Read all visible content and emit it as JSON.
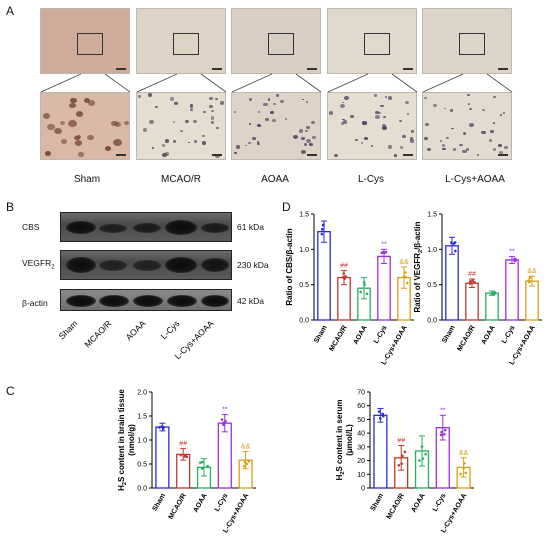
{
  "panelA": {
    "letter": "A",
    "groups": [
      "Sham",
      "MCAO/R",
      "AOAA",
      "L-Cys",
      "L-Cys+AOAA"
    ]
  },
  "panelB": {
    "letter": "B",
    "rows": [
      {
        "protein": "CBS",
        "kda": "61 kDa"
      },
      {
        "protein": "VEGFR",
        "sub": "2",
        "kda": "230 kDa"
      },
      {
        "protein": "β-actin",
        "kda": "42 kDa"
      }
    ],
    "lanes": [
      "Sham",
      "MCAO/R",
      "AOAA",
      "L-Cys",
      "L-Cys+AOAA"
    ]
  },
  "panelC_letter": "C",
  "panelD_letter": "D",
  "colors": {
    "sham": "#2b2bd6",
    "mcao": "#c0392b",
    "aoaa": "#27ae60",
    "lcys": "#9b30d9",
    "lcysaoaa": "#d4a017"
  },
  "chart_data": [
    {
      "id": "cbs",
      "type": "bar",
      "ylabel": "Ratio of CBS/β-actin",
      "categories": [
        "Sham",
        "MCAO/R",
        "AOAA",
        "L-Cys",
        "L-Cys+AOAA"
      ],
      "values": [
        1.25,
        0.6,
        0.45,
        0.9,
        0.6
      ],
      "errors": [
        0.15,
        0.1,
        0.15,
        0.1,
        0.15
      ],
      "ylim": [
        0,
        1.5
      ],
      "yticks": [
        "0.0",
        "0.5",
        "1.0",
        "1.5"
      ],
      "annotations": [
        "",
        "##",
        "",
        "**",
        "&&"
      ]
    },
    {
      "id": "vegfr",
      "type": "bar",
      "ylabel_main": "Ratio of VEGFR",
      "ylabel_sub": "2",
      "ylabel_tail": "/β-actin",
      "categories": [
        "Sham",
        "MCAO/R",
        "AOAA",
        "L-Cys",
        "L-Cys+AOAA"
      ],
      "values": [
        1.05,
        0.52,
        0.38,
        0.85,
        0.55
      ],
      "errors": [
        0.12,
        0.06,
        0.03,
        0.05,
        0.07
      ],
      "ylim": [
        0,
        1.5
      ],
      "yticks": [
        "0.0",
        "0.5",
        "1.0",
        "1.5"
      ],
      "annotations": [
        "",
        "##",
        "",
        "**",
        "&&"
      ]
    },
    {
      "id": "h2s-brain",
      "type": "bar",
      "ylabel_main": "H",
      "ylabel_sub": "2",
      "ylabel_tail": "S content in brain tissue",
      "ylabel_line2": "(nmol/g)",
      "categories": [
        "Sham",
        "MCAO/R",
        "AOAA",
        "L-Cys",
        "L-Cys+AOAA"
      ],
      "values": [
        1.27,
        0.7,
        0.43,
        1.35,
        0.58
      ],
      "errors": [
        0.08,
        0.12,
        0.18,
        0.18,
        0.18
      ],
      "ylim": [
        0,
        2.0
      ],
      "yticks": [
        "0.0",
        "0.5",
        "1.0",
        "1.5",
        "2.0"
      ],
      "annotations": [
        "",
        "##",
        "",
        "**",
        "&&"
      ]
    },
    {
      "id": "h2s-serum",
      "type": "bar",
      "ylabel_main": "H",
      "ylabel_sub": "2",
      "ylabel_tail": "S content in serum",
      "ylabel_line2": "(μmol/L)",
      "categories": [
        "Sham",
        "MCAO/R",
        "AOAA",
        "L-Cys",
        "L-Cys+AOAA"
      ],
      "values": [
        53,
        22,
        27,
        44,
        15
      ],
      "errors": [
        5,
        9,
        11,
        9,
        7
      ],
      "ylim": [
        0,
        70
      ],
      "yticks": [
        "0",
        "10",
        "20",
        "30",
        "40",
        "50",
        "60",
        "70"
      ],
      "annotations": [
        "",
        "##",
        "",
        "**",
        "&&"
      ]
    }
  ]
}
